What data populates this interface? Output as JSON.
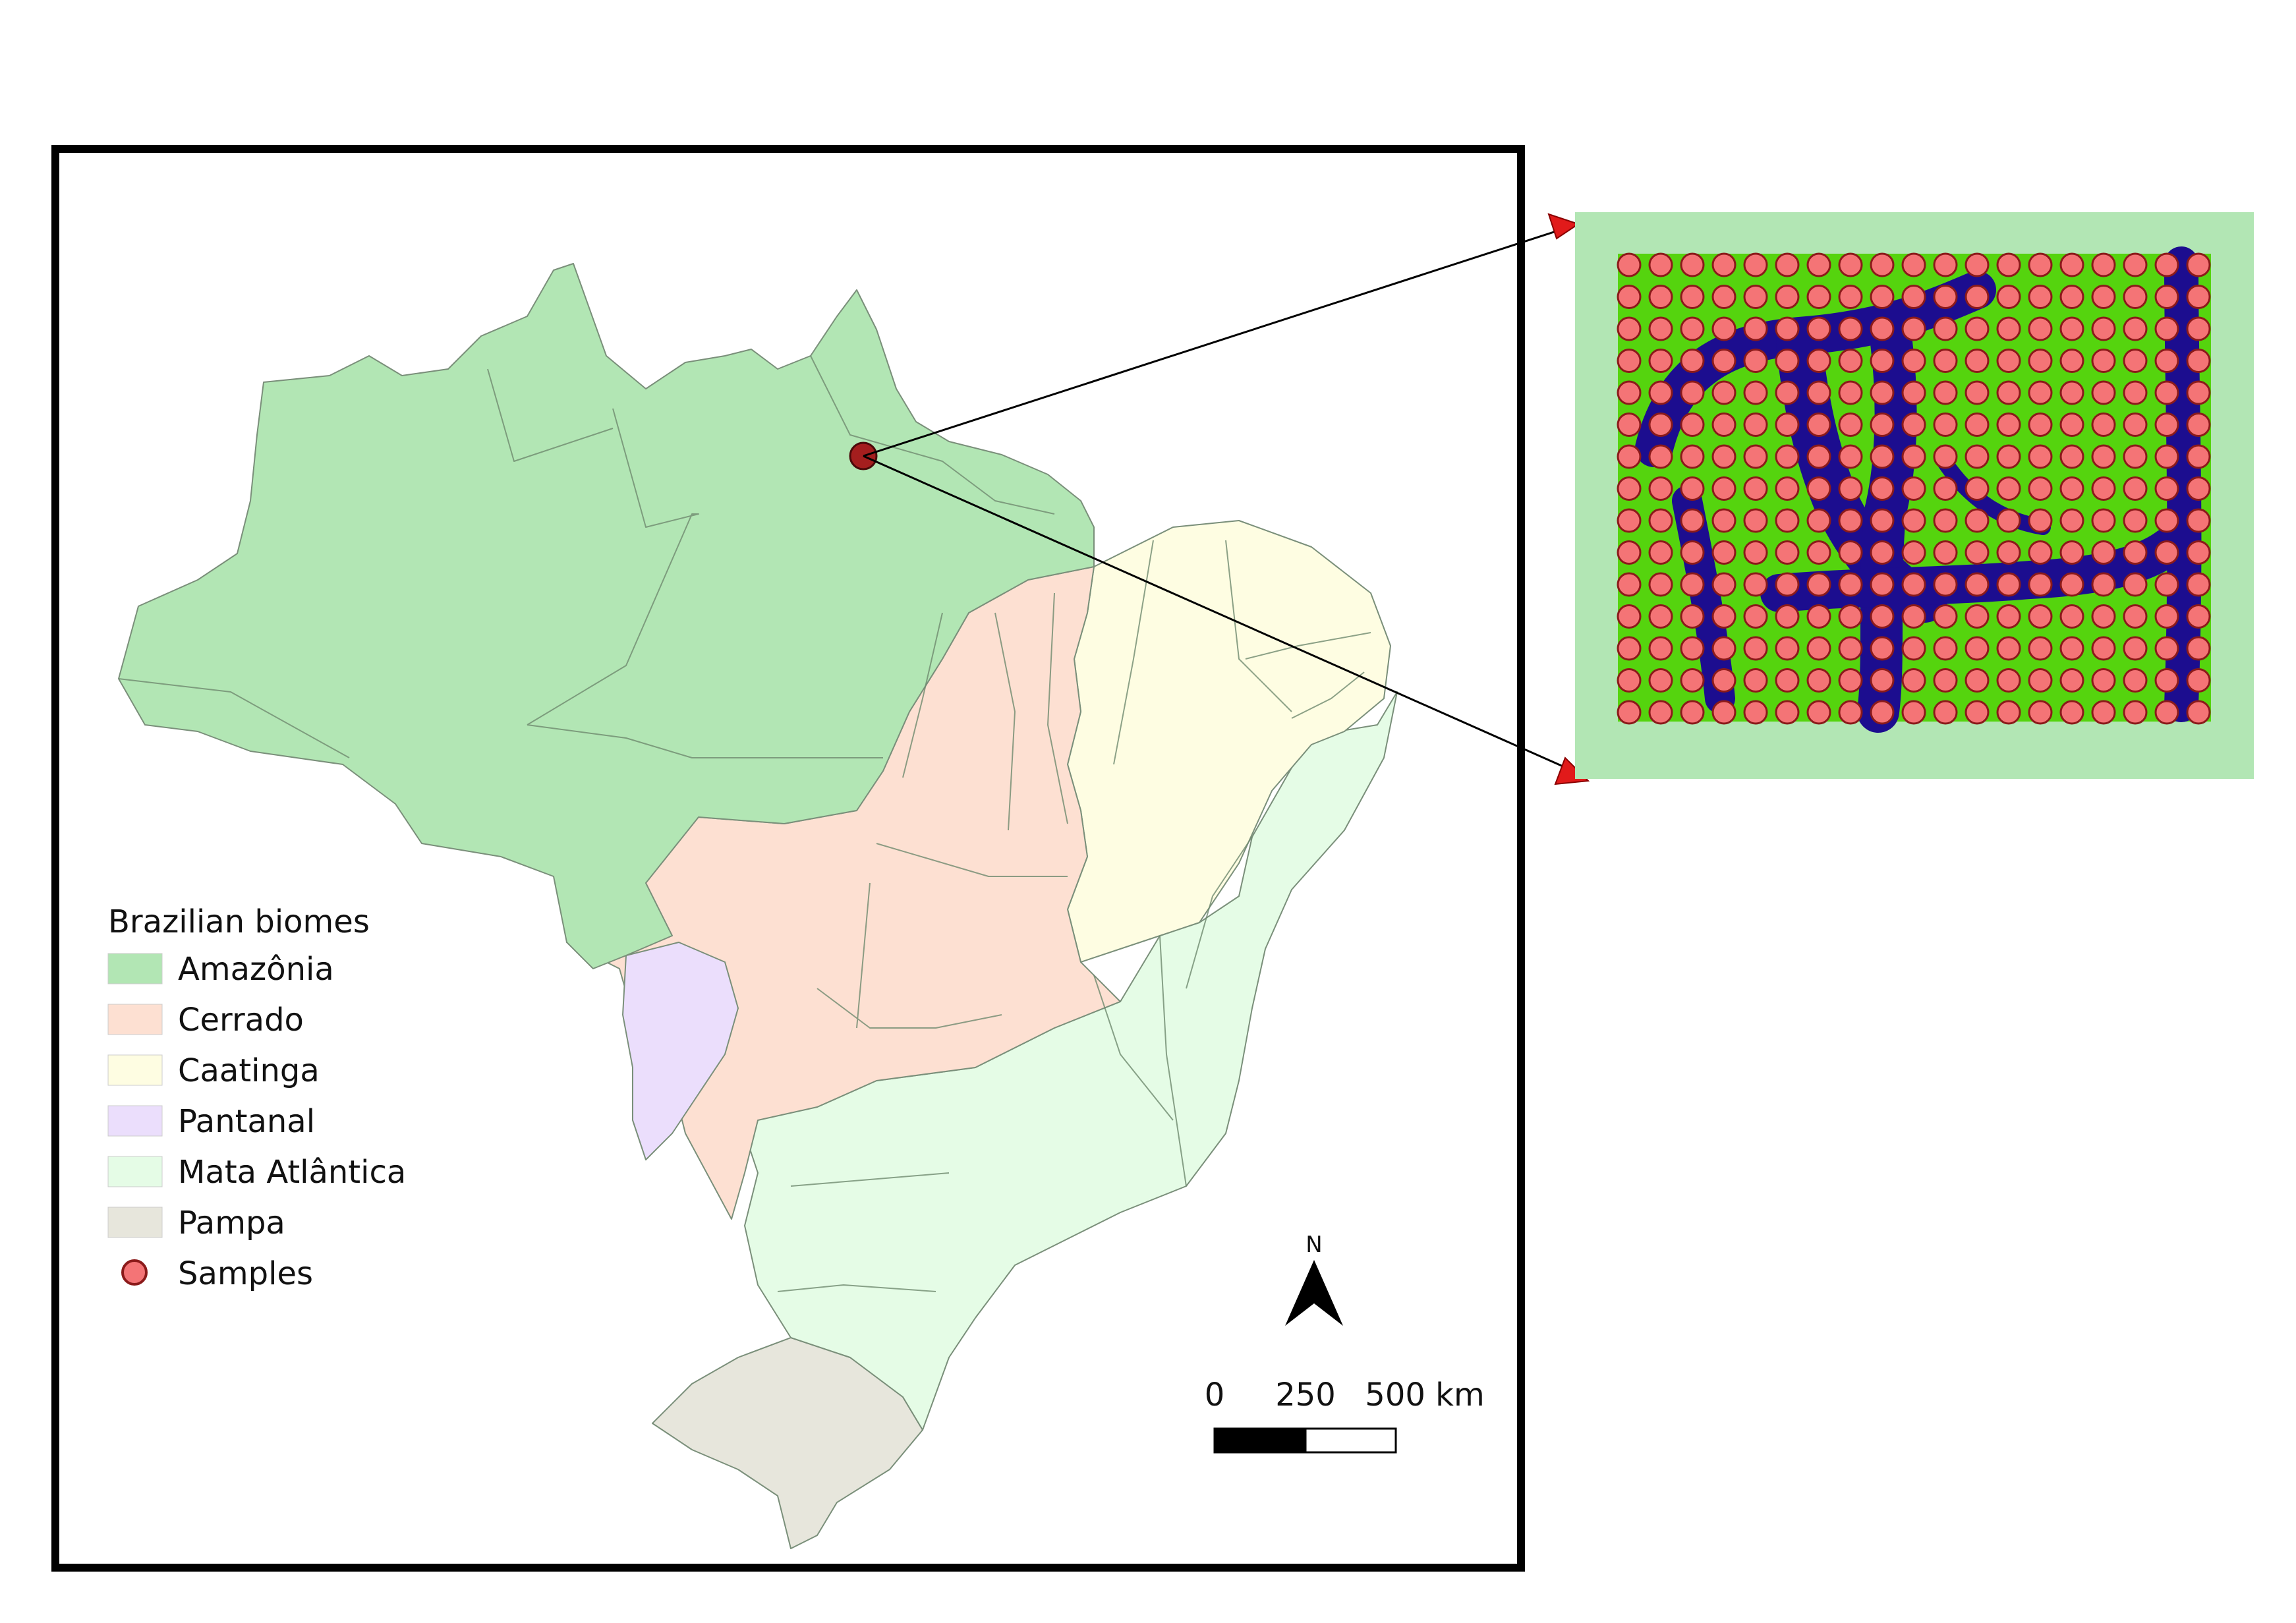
{
  "legend": {
    "title": "Brazilian biomes",
    "items": [
      {
        "label": "Amazônia",
        "color": "#b2e6b4",
        "kind": "patch"
      },
      {
        "label": "Cerrado",
        "color": "#fde0d2",
        "kind": "patch"
      },
      {
        "label": "Caatinga",
        "color": "#fefde2",
        "kind": "patch"
      },
      {
        "label": "Pantanal",
        "color": "#ebdefc",
        "kind": "patch"
      },
      {
        "label": "Mata Atlântica",
        "color": "#e5fce6",
        "kind": "patch"
      },
      {
        "label": "Pampa",
        "color": "#e7e6dc",
        "kind": "patch"
      },
      {
        "label": "Samples",
        "color": "#f47476",
        "kind": "point"
      }
    ]
  },
  "north_arrow": {
    "label": "N"
  },
  "scale_bar": {
    "labels": [
      "0",
      "250",
      "500 km"
    ]
  },
  "inset": {
    "background_color": "#b2e6b4",
    "vegetation_color": "#55d40e",
    "water_color": "#1c0d8f",
    "sample_grid": {
      "columns": 19,
      "rows": 15,
      "point_color": "#f47476",
      "point_stroke": "#8b1a1a"
    }
  },
  "callout": {
    "arrow_color": "#e11a1a",
    "sample_site_marker_color": "#a41e1e"
  },
  "colors": {
    "frame": "#000000",
    "state_border": "#7a8f7a"
  }
}
